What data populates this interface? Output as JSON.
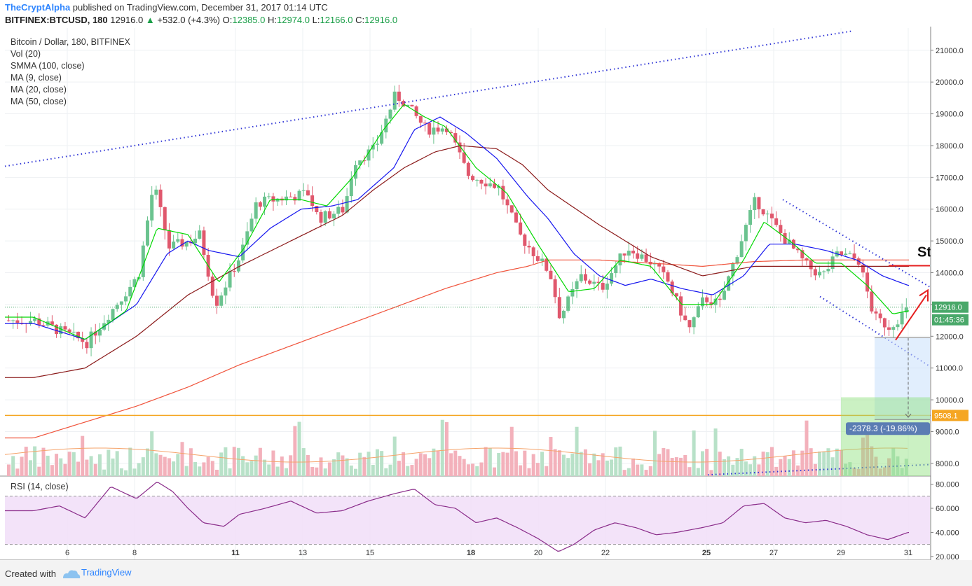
{
  "header": {
    "author": "TheCryptAlpha",
    "published_text": " published on TradingView.com, December 31, 2017 01:14 UTC",
    "symbol": "BITFINEX:BTCUSD, 180",
    "last": "12916.0",
    "change": "+532.0 (+4.3%)",
    "open_label": "O:",
    "open": "12385.0",
    "high_label": "H:",
    "high": "12974.0",
    "low_label": "L:",
    "low": "12166.0",
    "close_label": "C:",
    "close": "12916.0"
  },
  "legend": {
    "title": "Bitcoin / Dollar, 180, BITFINEX",
    "items": [
      "Vol (20)",
      "SMMA (100, close)",
      "MA (9, close)",
      "MA (20, close)",
      "MA (50, close)"
    ]
  },
  "rsi_label": "RSI (14, close)",
  "footer": {
    "created": "Created with",
    "brand": "TradingView"
  },
  "colors": {
    "up": "#6bc38f",
    "down": "#e0586d",
    "ma9": "#00d800",
    "ma20": "#1515ef",
    "ma50": "#8b1a1a",
    "smma": "#f0543c",
    "rsi": "#8a2c8a"
  },
  "annotations": {
    "stop_text": "St",
    "measure_text": "-2378.3 (-19.86%)",
    "level_label": "9508.1",
    "price_label": "12916.0",
    "timer_label": "01:45:36"
  },
  "chart_data": {
    "type": "candlestick",
    "price_axis": {
      "ticks": [
        "21000.0",
        "20000.0",
        "19000.0",
        "18000.0",
        "17000.0",
        "16000.0",
        "15000.0",
        "14000.0",
        "13000.0",
        "12000.0",
        "11000.0",
        "10000.0",
        "9000.0",
        "8000.0"
      ],
      "ylim": [
        7600,
        21700
      ]
    },
    "rsi_axis": {
      "ticks": [
        "80.000",
        "60.000",
        "40.000",
        "20.000"
      ],
      "ylim": [
        17,
        85
      ],
      "bands": [
        70,
        30
      ]
    },
    "x_ticks": [
      "6",
      "8",
      "11",
      "13",
      "15",
      "18",
      "20",
      "22",
      "25",
      "27",
      "29",
      "31"
    ],
    "close_anchors": [
      [
        5,
        12500
      ],
      [
        6,
        11800
      ],
      [
        7,
        13900
      ],
      [
        7.3,
        16800
      ],
      [
        7.6,
        14800
      ],
      [
        8,
        15000
      ],
      [
        8.2,
        15200
      ],
      [
        8.5,
        13000
      ],
      [
        9,
        14600
      ],
      [
        9.3,
        16200
      ],
      [
        10,
        16400
      ],
      [
        10.3,
        16500
      ],
      [
        10.5,
        15700
      ],
      [
        11,
        16000
      ],
      [
        11.2,
        17500
      ],
      [
        11.6,
        17900
      ],
      [
        12,
        19600
      ],
      [
        12.2,
        19300
      ],
      [
        12.6,
        18500
      ],
      [
        13,
        18600
      ],
      [
        13.4,
        17100
      ],
      [
        14,
        16700
      ],
      [
        14.4,
        15200
      ],
      [
        15,
        14000
      ],
      [
        15.2,
        12600
      ],
      [
        15.6,
        13900
      ],
      [
        16,
        13500
      ],
      [
        16.5,
        14800
      ],
      [
        17,
        14300
      ],
      [
        17.3,
        13700
      ],
      [
        17.7,
        12200
      ],
      [
        18,
        13200
      ],
      [
        18.3,
        13000
      ],
      [
        18.8,
        15400
      ],
      [
        19,
        16300
      ],
      [
        19.5,
        15200
      ],
      [
        20,
        14200
      ],
      [
        20.3,
        13900
      ],
      [
        20.6,
        14600
      ],
      [
        21,
        14400
      ],
      [
        21.3,
        12600
      ],
      [
        21.6,
        12300
      ],
      [
        22,
        12916
      ]
    ],
    "ma9_anchors": [
      [
        5,
        12600
      ],
      [
        6,
        11900
      ],
      [
        6.8,
        12800
      ],
      [
        7.4,
        15400
      ],
      [
        8,
        15200
      ],
      [
        8.6,
        13700
      ],
      [
        9.1,
        14800
      ],
      [
        9.6,
        16300
      ],
      [
        10.2,
        16300
      ],
      [
        10.7,
        16100
      ],
      [
        11.2,
        17000
      ],
      [
        11.8,
        18500
      ],
      [
        12.2,
        19300
      ],
      [
        12.6,
        18900
      ],
      [
        13,
        18600
      ],
      [
        13.6,
        17300
      ],
      [
        14.2,
        16500
      ],
      [
        14.8,
        14900
      ],
      [
        15.4,
        13400
      ],
      [
        15.9,
        13500
      ],
      [
        16.4,
        14400
      ],
      [
        17,
        14200
      ],
      [
        17.6,
        13000
      ],
      [
        18.2,
        13000
      ],
      [
        18.8,
        14400
      ],
      [
        19.2,
        15600
      ],
      [
        19.7,
        15000
      ],
      [
        20.2,
        14300
      ],
      [
        20.7,
        14300
      ],
      [
        21.2,
        13600
      ],
      [
        21.7,
        12700
      ],
      [
        22,
        12800
      ]
    ],
    "ma20_anchors": [
      [
        5,
        12400
      ],
      [
        6,
        11900
      ],
      [
        7,
        13000
      ],
      [
        7.6,
        14600
      ],
      [
        8,
        15000
      ],
      [
        8.4,
        14700
      ],
      [
        9,
        14500
      ],
      [
        9.6,
        15400
      ],
      [
        10.2,
        16000
      ],
      [
        10.8,
        16100
      ],
      [
        11.3,
        16300
      ],
      [
        12,
        17300
      ],
      [
        12.4,
        18500
      ],
      [
        12.9,
        18900
      ],
      [
        13.4,
        18400
      ],
      [
        14,
        17600
      ],
      [
        14.6,
        16400
      ],
      [
        15,
        15700
      ],
      [
        15.5,
        14600
      ],
      [
        16,
        13900
      ],
      [
        16.5,
        13600
      ],
      [
        17,
        13800
      ],
      [
        17.6,
        13500
      ],
      [
        18.2,
        13300
      ],
      [
        18.8,
        13900
      ],
      [
        19.3,
        14900
      ],
      [
        19.8,
        14900
      ],
      [
        20.4,
        14700
      ],
      [
        21,
        14400
      ],
      [
        21.5,
        13900
      ],
      [
        22,
        13600
      ]
    ],
    "ma50_anchors": [
      [
        5,
        10700
      ],
      [
        6,
        11000
      ],
      [
        7,
        12000
      ],
      [
        8,
        13300
      ],
      [
        9,
        14200
      ],
      [
        10,
        15000
      ],
      [
        11,
        15800
      ],
      [
        11.6,
        16600
      ],
      [
        12.2,
        17300
      ],
      [
        12.8,
        17800
      ],
      [
        13.3,
        18000
      ],
      [
        14,
        17900
      ],
      [
        14.5,
        17400
      ],
      [
        15,
        16600
      ],
      [
        16,
        15500
      ],
      [
        17,
        14500
      ],
      [
        18,
        13900
      ],
      [
        19,
        14200
      ],
      [
        20,
        14200
      ],
      [
        21,
        14200
      ],
      [
        22,
        14200
      ]
    ],
    "smma_anchors": [
      [
        5,
        8800
      ],
      [
        6,
        9300
      ],
      [
        7,
        9800
      ],
      [
        8,
        10400
      ],
      [
        9,
        11100
      ],
      [
        10,
        11700
      ],
      [
        11,
        12300
      ],
      [
        12,
        12900
      ],
      [
        13,
        13500
      ],
      [
        14,
        14000
      ],
      [
        14.6,
        14200
      ],
      [
        15,
        14400
      ],
      [
        16,
        14400
      ],
      [
        17,
        14300
      ],
      [
        18,
        14200
      ],
      [
        19,
        14350
      ],
      [
        20,
        14400
      ],
      [
        21,
        14400
      ],
      [
        22,
        14400
      ]
    ],
    "rsi_anchors": [
      [
        5,
        58
      ],
      [
        5.5,
        62
      ],
      [
        6,
        52
      ],
      [
        6.5,
        78
      ],
      [
        7,
        68
      ],
      [
        7.4,
        82
      ],
      [
        7.7,
        74
      ],
      [
        8,
        60
      ],
      [
        8.3,
        48
      ],
      [
        8.7,
        45
      ],
      [
        9,
        55
      ],
      [
        9.5,
        60
      ],
      [
        10,
        66
      ],
      [
        10.5,
        56
      ],
      [
        11,
        58
      ],
      [
        11.5,
        66
      ],
      [
        12,
        72
      ],
      [
        12.4,
        76
      ],
      [
        12.8,
        63
      ],
      [
        13.2,
        60
      ],
      [
        13.6,
        48
      ],
      [
        14,
        52
      ],
      [
        14.4,
        44
      ],
      [
        14.8,
        35
      ],
      [
        15.2,
        24
      ],
      [
        15.5,
        30
      ],
      [
        15.9,
        42
      ],
      [
        16.3,
        48
      ],
      [
        16.7,
        44
      ],
      [
        17.1,
        38
      ],
      [
        17.5,
        40
      ],
      [
        18,
        44
      ],
      [
        18.4,
        48
      ],
      [
        18.8,
        62
      ],
      [
        19.2,
        64
      ],
      [
        19.6,
        52
      ],
      [
        20,
        48
      ],
      [
        20.4,
        50
      ],
      [
        20.8,
        45
      ],
      [
        21.2,
        38
      ],
      [
        21.6,
        34
      ],
      [
        22,
        40
      ]
    ]
  }
}
